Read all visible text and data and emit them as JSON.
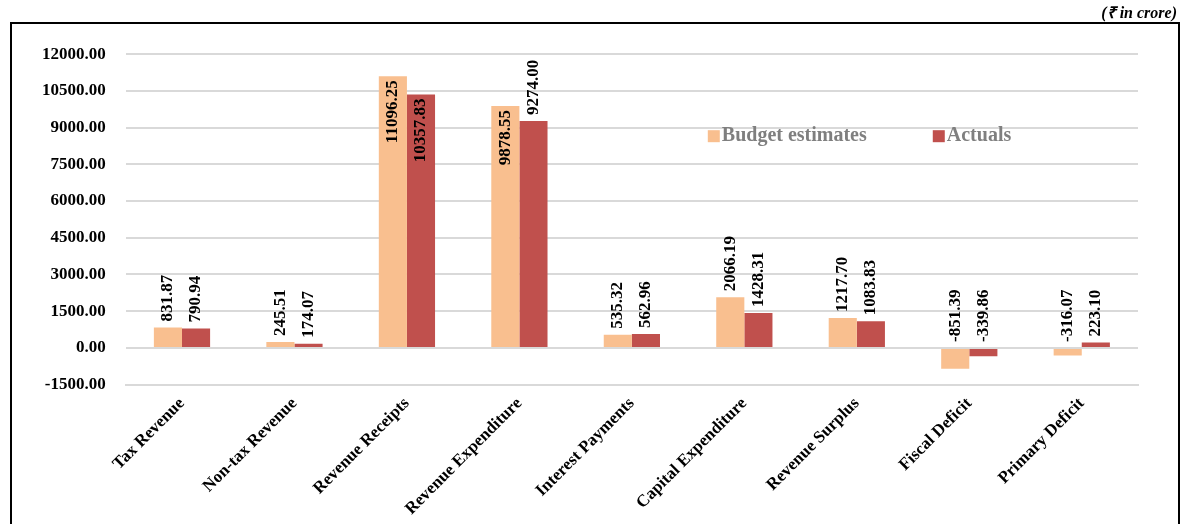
{
  "chart_data": {
    "type": "bar",
    "categories": [
      "Tax Revenue",
      "Non-tax Revenue",
      "Revenue Receipts",
      "Revenue Expenditure",
      "Interest Payments",
      "Capital Expenditure",
      "Revenue Surplus",
      "Fiscal Deficit",
      "Primary Deficit"
    ],
    "series": [
      {
        "name": "Budget estimates",
        "color": "#f9bf8f",
        "values": [
          831.87,
          245.51,
          11096.25,
          9878.55,
          535.32,
          2066.19,
          1217.7,
          -851.39,
          -316.07
        ],
        "value_labels": [
          "831.87",
          "245.51",
          "11096.25",
          "9878.55",
          "535.32",
          "2066.19",
          "1217.70",
          "-851.39",
          "-316.07"
        ]
      },
      {
        "name": "Actuals",
        "color": "#c0504d",
        "values": [
          790.94,
          174.07,
          10357.83,
          9274.0,
          562.96,
          1428.31,
          1083.83,
          -339.86,
          223.1
        ],
        "value_labels": [
          "790.94",
          "174.07",
          "10357.83",
          "9274.00",
          "562.96",
          "1428.31",
          "1083.83",
          "-339.86",
          "223.10"
        ]
      }
    ],
    "ylim": [
      -1500,
      12000
    ],
    "yticks": [
      {
        "value": -1500,
        "label": "-1500.00"
      },
      {
        "value": 0,
        "label": "0.00"
      },
      {
        "value": 1500,
        "label": "1500.00"
      },
      {
        "value": 3000,
        "label": "3000.00"
      },
      {
        "value": 4500,
        "label": "4500.00"
      },
      {
        "value": 6000,
        "label": "6000.00"
      },
      {
        "value": 7500,
        "label": "7500.00"
      },
      {
        "value": 9000,
        "label": "9000.00"
      },
      {
        "value": 10500,
        "label": "10500.00"
      },
      {
        "value": 12000,
        "label": "12000.00"
      }
    ],
    "grid": "y",
    "legend": "top right",
    "annotations": [
      "(₹ in crore)"
    ]
  }
}
